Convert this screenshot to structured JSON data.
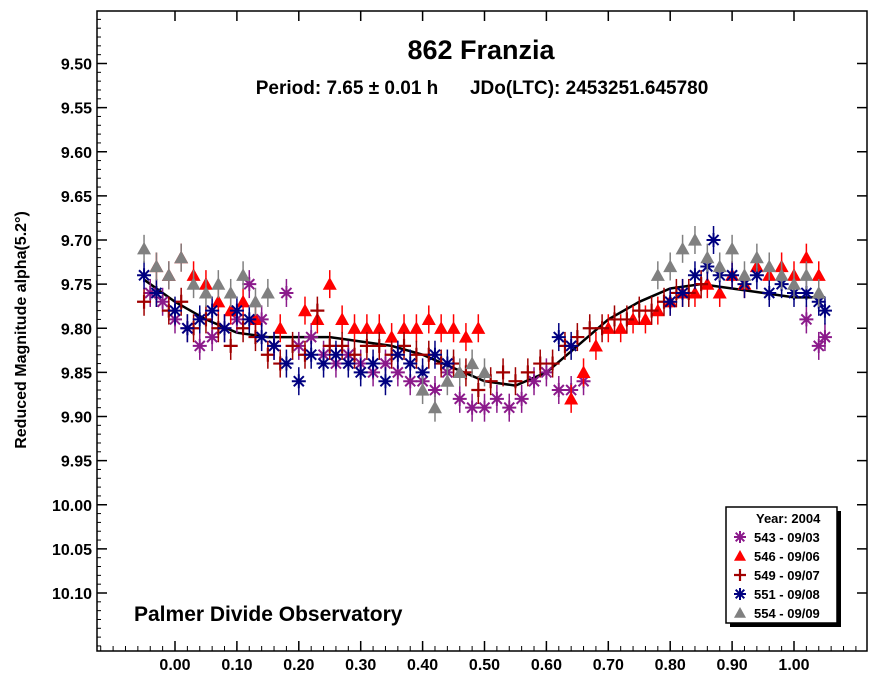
{
  "chart_data": {
    "type": "scatter",
    "title": "862 Franzia",
    "subtitle": "Period: 7.65 ± 0.01 h      JDo(LTC): 2453251.645780",
    "xlabel": "",
    "ylabel": "Reduced Magnitude alpha(5.2°)",
    "annotation": "Palmer Divide Observatory",
    "xlim": [
      -0.125,
      1.125
    ],
    "ylim": [
      9.45,
      10.21
    ],
    "y_inverted": true,
    "grid": false,
    "x_ticks": [
      "0.00",
      "0.10",
      "0.20",
      "0.30",
      "0.40",
      "0.50",
      "0.60",
      "0.70",
      "0.80",
      "0.90",
      "1.00"
    ],
    "y_ticks": [
      "9.50",
      "9.55",
      "9.60",
      "9.65",
      "9.70",
      "9.75",
      "9.80",
      "9.85",
      "9.90",
      "9.95",
      "10.00",
      "10.05",
      "10.10"
    ],
    "legend": {
      "title": "Year: 2004",
      "position": "bottom-right",
      "entries": [
        {
          "label": "543 - 09/03",
          "color": "#8B1A8B",
          "marker": "asterisk"
        },
        {
          "label": "546 - 09/06",
          "color": "#FF0000",
          "marker": "triangle"
        },
        {
          "label": "549 - 09/07",
          "color": "#A00000",
          "marker": "plus"
        },
        {
          "label": "551 - 09/08",
          "color": "#000080",
          "marker": "asterisk"
        },
        {
          "label": "554 - 09/09",
          "color": "#808080",
          "marker": "triangle"
        }
      ]
    },
    "fit_curve": {
      "x": [
        -0.05,
        0.0,
        0.05,
        0.1,
        0.15,
        0.2,
        0.25,
        0.3,
        0.35,
        0.4,
        0.45,
        0.5,
        0.55,
        0.6,
        0.65,
        0.7,
        0.75,
        0.8,
        0.85,
        0.9,
        0.95,
        1.0,
        1.05
      ],
      "y": [
        9.745,
        9.77,
        9.79,
        9.805,
        9.81,
        9.81,
        9.81,
        9.815,
        9.82,
        9.83,
        9.845,
        9.86,
        9.865,
        9.85,
        9.82,
        9.79,
        9.77,
        9.755,
        9.75,
        9.755,
        9.76,
        9.765,
        9.765
      ]
    },
    "series": [
      {
        "name": "543 - 09/03",
        "color": "#8B1A8B",
        "marker": "asterisk",
        "x": [
          -0.04,
          -0.02,
          0.0,
          0.02,
          0.04,
          0.06,
          0.08,
          0.1,
          0.12,
          0.14,
          0.16,
          0.18,
          0.2,
          0.22,
          0.24,
          0.26,
          0.28,
          0.3,
          0.32,
          0.34,
          0.36,
          0.38,
          0.4,
          0.42,
          0.44,
          0.46,
          0.48,
          0.5,
          0.52,
          0.54,
          0.56,
          0.58,
          0.6,
          0.62,
          0.64,
          0.66,
          1.02,
          1.04,
          1.05
        ],
        "y": [
          9.76,
          9.77,
          9.79,
          9.8,
          9.82,
          9.81,
          9.8,
          9.79,
          9.75,
          9.79,
          9.82,
          9.76,
          9.82,
          9.81,
          9.83,
          9.84,
          9.83,
          9.84,
          9.85,
          9.84,
          9.85,
          9.86,
          9.86,
          9.87,
          9.85,
          9.88,
          9.89,
          9.89,
          9.88,
          9.89,
          9.88,
          9.86,
          9.85,
          9.87,
          9.87,
          9.86,
          9.79,
          9.82,
          9.81
        ]
      },
      {
        "name": "546 - 09/06",
        "color": "#FF0000",
        "marker": "triangle",
        "x": [
          -0.03,
          -0.01,
          0.01,
          0.03,
          0.05,
          0.07,
          0.09,
          0.11,
          0.13,
          0.17,
          0.21,
          0.23,
          0.25,
          0.27,
          0.29,
          0.31,
          0.33,
          0.35,
          0.37,
          0.39,
          0.41,
          0.43,
          0.45,
          0.47,
          0.49,
          0.64,
          0.66,
          0.68,
          0.7,
          0.72,
          0.74,
          0.76,
          0.78,
          0.8,
          0.82,
          0.84,
          0.86,
          0.88,
          0.9,
          0.92,
          0.94,
          0.96,
          0.98,
          1.0,
          1.02,
          1.04
        ],
        "y": [
          9.73,
          9.74,
          9.72,
          9.74,
          9.75,
          9.77,
          9.78,
          9.77,
          9.79,
          9.8,
          9.78,
          9.79,
          9.75,
          9.79,
          9.8,
          9.8,
          9.8,
          9.81,
          9.8,
          9.8,
          9.79,
          9.8,
          9.8,
          9.81,
          9.8,
          9.88,
          9.85,
          9.82,
          9.8,
          9.8,
          9.79,
          9.79,
          9.78,
          9.77,
          9.76,
          9.76,
          9.75,
          9.76,
          9.74,
          9.75,
          9.73,
          9.74,
          9.73,
          9.74,
          9.72,
          9.74
        ]
      },
      {
        "name": "549 - 09/07",
        "color": "#A00000",
        "marker": "plus",
        "x": [
          -0.05,
          -0.03,
          -0.01,
          0.01,
          0.03,
          0.05,
          0.07,
          0.09,
          0.11,
          0.13,
          0.15,
          0.17,
          0.19,
          0.21,
          0.23,
          0.25,
          0.27,
          0.29,
          0.31,
          0.33,
          0.35,
          0.37,
          0.39,
          0.41,
          0.43,
          0.45,
          0.47,
          0.49,
          0.51,
          0.53,
          0.55,
          0.57,
          0.59,
          0.61,
          0.63,
          0.65,
          0.67,
          0.69,
          0.71,
          0.73,
          0.75,
          0.77,
          0.79,
          0.81,
          0.83,
          0.85
        ],
        "y": [
          9.77,
          9.76,
          9.78,
          9.77,
          9.8,
          9.79,
          9.8,
          9.82,
          9.8,
          9.81,
          9.83,
          9.84,
          9.82,
          9.83,
          9.78,
          9.82,
          9.82,
          9.83,
          9.82,
          9.82,
          9.83,
          9.82,
          9.83,
          9.83,
          9.84,
          9.84,
          9.85,
          9.87,
          9.86,
          9.85,
          9.86,
          9.85,
          9.84,
          9.84,
          9.82,
          9.81,
          9.8,
          9.8,
          9.79,
          9.79,
          9.78,
          9.78,
          9.77,
          9.76,
          9.76,
          9.75
        ]
      },
      {
        "name": "551 - 09/08",
        "color": "#000080",
        "marker": "asterisk",
        "x": [
          -0.05,
          -0.03,
          0.0,
          0.02,
          0.04,
          0.06,
          0.08,
          0.1,
          0.12,
          0.14,
          0.16,
          0.18,
          0.2,
          0.22,
          0.24,
          0.26,
          0.28,
          0.3,
          0.32,
          0.34,
          0.36,
          0.38,
          0.4,
          0.42,
          0.44,
          0.62,
          0.64,
          0.8,
          0.82,
          0.84,
          0.86,
          0.87,
          0.88,
          0.9,
          0.92,
          0.94,
          0.96,
          0.98,
          1.0,
          1.02,
          1.04,
          1.05
        ],
        "y": [
          9.74,
          9.76,
          9.78,
          9.8,
          9.79,
          9.78,
          9.8,
          9.78,
          9.79,
          9.81,
          9.82,
          9.84,
          9.86,
          9.83,
          9.84,
          9.83,
          9.84,
          9.85,
          9.84,
          9.86,
          9.83,
          9.84,
          9.85,
          9.83,
          9.84,
          9.81,
          9.82,
          9.77,
          9.76,
          9.74,
          9.73,
          9.7,
          9.74,
          9.74,
          9.75,
          9.74,
          9.76,
          9.75,
          9.76,
          9.76,
          9.77,
          9.78
        ]
      },
      {
        "name": "554 - 09/09",
        "color": "#808080",
        "marker": "triangle",
        "x": [
          -0.05,
          -0.03,
          -0.01,
          0.01,
          0.03,
          0.05,
          0.07,
          0.09,
          0.11,
          0.13,
          0.15,
          0.4,
          0.42,
          0.44,
          0.46,
          0.48,
          0.5,
          0.78,
          0.8,
          0.82,
          0.84,
          0.86,
          0.88,
          0.9,
          0.92,
          0.94,
          0.96,
          0.98,
          1.0,
          1.02,
          1.04
        ],
        "y": [
          9.71,
          9.73,
          9.74,
          9.72,
          9.75,
          9.76,
          9.75,
          9.76,
          9.74,
          9.77,
          9.76,
          9.87,
          9.89,
          9.86,
          9.85,
          9.84,
          9.85,
          9.74,
          9.73,
          9.71,
          9.7,
          9.72,
          9.73,
          9.71,
          9.74,
          9.72,
          9.73,
          9.74,
          9.75,
          9.74,
          9.76
        ]
      }
    ]
  }
}
